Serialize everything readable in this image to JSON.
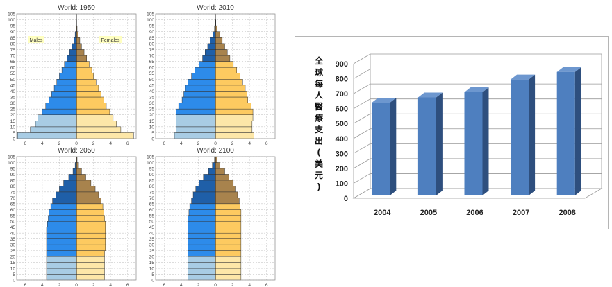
{
  "chart_data": [
    {
      "type": "bar",
      "subtype": "population-pyramid",
      "title": "World: 1950",
      "age_ticks": [
        0,
        5,
        10,
        15,
        20,
        25,
        30,
        35,
        40,
        45,
        50,
        55,
        60,
        65,
        70,
        75,
        80,
        85,
        90,
        95,
        100,
        105
      ],
      "x_ticks": [
        "6",
        "4",
        "2",
        "0",
        "2",
        "4",
        "6"
      ],
      "xlim": [
        -7,
        7
      ],
      "legend": {
        "males": "Males",
        "females": "Females"
      },
      "age_groups": [
        "0-4",
        "5-9",
        "10-14",
        "15-19",
        "20-24",
        "25-29",
        "30-34",
        "35-39",
        "40-44",
        "45-49",
        "50-54",
        "55-59",
        "60-64",
        "65-69",
        "70-74",
        "75-79",
        "80-84",
        "85-89",
        "90-94",
        "95-99",
        "100+"
      ],
      "series": [
        {
          "name": "Males",
          "values": [
            6.9,
            5.4,
            4.8,
            4.5,
            4.0,
            3.6,
            3.2,
            2.9,
            2.6,
            2.3,
            2.0,
            1.7,
            1.4,
            1.1,
            0.8,
            0.5,
            0.3,
            0.15,
            0.05,
            0.02,
            0.01
          ]
        },
        {
          "name": "Females",
          "values": [
            6.7,
            5.2,
            4.7,
            4.3,
            3.9,
            3.5,
            3.2,
            2.9,
            2.6,
            2.3,
            2.0,
            1.8,
            1.5,
            1.2,
            0.9,
            0.6,
            0.4,
            0.2,
            0.08,
            0.03,
            0.01
          ]
        }
      ]
    },
    {
      "type": "bar",
      "subtype": "population-pyramid",
      "title": "World: 2010",
      "age_ticks": [
        0,
        5,
        10,
        15,
        20,
        25,
        30,
        35,
        40,
        45,
        50,
        55,
        60,
        65,
        70,
        75,
        80,
        85,
        90,
        95,
        100,
        105
      ],
      "x_ticks": [
        "6",
        "4",
        "2",
        "0",
        "2",
        "4",
        "6"
      ],
      "xlim": [
        -7,
        7
      ],
      "age_groups": [
        "0-4",
        "5-9",
        "10-14",
        "15-19",
        "20-24",
        "25-29",
        "30-34",
        "35-39",
        "40-44",
        "45-49",
        "50-54",
        "55-59",
        "60-64",
        "65-69",
        "70-74",
        "75-79",
        "80-84",
        "85-89",
        "90-94",
        "95-99",
        "100+"
      ],
      "series": [
        {
          "name": "Males",
          "values": [
            4.8,
            4.6,
            4.6,
            4.6,
            4.6,
            4.3,
            3.9,
            3.7,
            3.5,
            3.2,
            2.8,
            2.4,
            1.9,
            1.5,
            1.2,
            0.9,
            0.6,
            0.3,
            0.1,
            0.04,
            0.01
          ]
        },
        {
          "name": "Females",
          "values": [
            4.5,
            4.3,
            4.3,
            4.4,
            4.4,
            4.2,
            3.8,
            3.7,
            3.5,
            3.2,
            2.9,
            2.5,
            2.1,
            1.7,
            1.4,
            1.1,
            0.8,
            0.5,
            0.2,
            0.06,
            0.02
          ]
        }
      ]
    },
    {
      "type": "bar",
      "subtype": "population-pyramid",
      "title": "World: 2050",
      "age_ticks": [
        0,
        5,
        10,
        15,
        20,
        25,
        30,
        35,
        40,
        45,
        50,
        55,
        60,
        65,
        70,
        75,
        80,
        85,
        90,
        95,
        100,
        105
      ],
      "x_ticks": [
        "6",
        "4",
        "2",
        "0",
        "2",
        "4",
        "6"
      ],
      "xlim": [
        -7,
        7
      ],
      "age_groups": [
        "0-4",
        "5-9",
        "10-14",
        "15-19",
        "20-24",
        "25-29",
        "30-34",
        "35-39",
        "40-44",
        "45-49",
        "50-54",
        "55-59",
        "60-64",
        "65-69",
        "70-74",
        "75-79",
        "80-84",
        "85-89",
        "90-94",
        "95-99",
        "100+"
      ],
      "series": [
        {
          "name": "Males",
          "values": [
            3.5,
            3.5,
            3.5,
            3.5,
            3.5,
            3.5,
            3.5,
            3.5,
            3.5,
            3.4,
            3.3,
            3.2,
            3.0,
            2.8,
            2.4,
            2.0,
            1.5,
            0.9,
            0.4,
            0.15,
            0.04
          ]
        },
        {
          "name": "Females",
          "values": [
            3.3,
            3.3,
            3.3,
            3.3,
            3.3,
            3.4,
            3.4,
            3.4,
            3.4,
            3.4,
            3.3,
            3.2,
            3.1,
            2.9,
            2.6,
            2.2,
            1.7,
            1.1,
            0.6,
            0.25,
            0.08
          ]
        }
      ]
    },
    {
      "type": "bar",
      "subtype": "population-pyramid",
      "title": "World: 2100",
      "age_ticks": [
        0,
        5,
        10,
        15,
        20,
        25,
        30,
        35,
        40,
        45,
        50,
        55,
        60,
        65,
        70,
        75,
        80,
        85,
        90,
        95,
        100,
        105
      ],
      "x_ticks": [
        "6",
        "4",
        "2",
        "0",
        "2",
        "4",
        "6"
      ],
      "xlim": [
        -7,
        7
      ],
      "age_groups": [
        "0-4",
        "5-9",
        "10-14",
        "15-19",
        "20-24",
        "25-29",
        "30-34",
        "35-39",
        "40-44",
        "45-49",
        "50-54",
        "55-59",
        "60-64",
        "65-69",
        "70-74",
        "75-79",
        "80-84",
        "85-89",
        "90-94",
        "95-99",
        "100+"
      ],
      "series": [
        {
          "name": "Males",
          "values": [
            3.2,
            3.2,
            3.2,
            3.2,
            3.2,
            3.2,
            3.2,
            3.2,
            3.2,
            3.2,
            3.2,
            3.1,
            3.0,
            2.8,
            2.6,
            2.3,
            1.9,
            1.4,
            0.8,
            0.35,
            0.1
          ]
        },
        {
          "name": "Females",
          "values": [
            3.0,
            3.0,
            3.0,
            3.0,
            3.0,
            3.0,
            3.0,
            3.0,
            3.0,
            3.0,
            3.0,
            3.0,
            2.9,
            2.8,
            2.6,
            2.4,
            2.1,
            1.6,
            1.1,
            0.55,
            0.2
          ]
        }
      ]
    },
    {
      "type": "bar",
      "style": "3d",
      "title": "",
      "ylabel": "全球每人醫療支出(美元)",
      "categories": [
        "2004",
        "2005",
        "2006",
        "2007",
        "2008"
      ],
      "values": [
        640,
        675,
        710,
        795,
        845
      ],
      "ylim": [
        0,
        900
      ],
      "yticks": [
        0,
        100,
        200,
        300,
        400,
        500,
        600,
        700,
        800,
        900
      ],
      "grid": true
    }
  ],
  "colors": {
    "male_young": "#a8cce4",
    "male_mid": "#2d8bea",
    "male_old": "#1f5fa8",
    "female_young": "#fde7a8",
    "female_mid": "#fdca60",
    "female_old": "#a8834d",
    "bar_front": "#4e7fbf",
    "bar_side": "#2e4f7e",
    "bar_top": "#6d97cf",
    "legend_bg": "#ffffc0"
  }
}
